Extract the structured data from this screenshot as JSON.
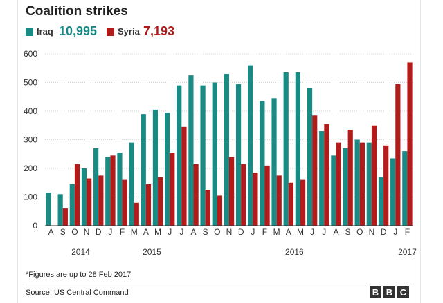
{
  "chart_data": {
    "type": "bar",
    "title": "Coalition strikes",
    "categories": [
      "A",
      "S",
      "O",
      "N",
      "D",
      "J",
      "F",
      "M",
      "A",
      "M",
      "J",
      "J",
      "A",
      "S",
      "O",
      "N",
      "D",
      "J",
      "F",
      "M",
      "A",
      "M",
      "J",
      "J",
      "A",
      "S",
      "O",
      "N",
      "D",
      "J",
      "F"
    ],
    "year_labels": [
      {
        "label": "2014",
        "index": 2.5
      },
      {
        "label": "2015",
        "index": 8.5
      },
      {
        "label": "2016",
        "index": 20.5
      },
      {
        "label": "2017",
        "index": 30
      }
    ],
    "series": [
      {
        "name": "Iraq",
        "total": "10,995",
        "color": "#1a8a84",
        "values": [
          115,
          110,
          145,
          200,
          270,
          240,
          255,
          290,
          390,
          405,
          395,
          490,
          525,
          490,
          500,
          530,
          495,
          560,
          435,
          445,
          535,
          535,
          480,
          330,
          245,
          270,
          300,
          290,
          170,
          235,
          260
        ]
      },
      {
        "name": "Syria",
        "total": "7,193",
        "color": "#b31b1b",
        "values": [
          0,
          60,
          215,
          165,
          175,
          245,
          160,
          80,
          145,
          170,
          255,
          345,
          215,
          125,
          105,
          240,
          215,
          185,
          210,
          175,
          150,
          160,
          385,
          355,
          290,
          335,
          290,
          350,
          280,
          495,
          570
        ]
      }
    ],
    "yticks": [
      0,
      100,
      200,
      300,
      400,
      500,
      600
    ],
    "ylim": [
      0,
      600
    ],
    "grid": true,
    "legend": "top-left"
  },
  "footnote": "*Figures are up to 28 Feb 2017",
  "source": "Source: US Central Command",
  "logo": "BBC"
}
